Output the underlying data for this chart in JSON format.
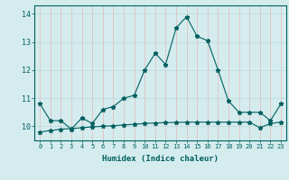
{
  "xlabel": "Humidex (Indice chaleur)",
  "x": [
    0,
    1,
    2,
    3,
    4,
    5,
    6,
    7,
    8,
    9,
    10,
    11,
    12,
    13,
    14,
    15,
    16,
    17,
    18,
    19,
    20,
    21,
    22,
    23
  ],
  "line1": [
    10.8,
    10.2,
    10.2,
    9.9,
    10.3,
    10.1,
    10.6,
    10.7,
    11.0,
    11.1,
    12.0,
    12.6,
    12.2,
    13.5,
    13.9,
    13.2,
    13.05,
    12.0,
    10.9,
    10.5,
    10.5,
    10.5,
    10.2,
    10.8
  ],
  "line2": [
    9.8,
    9.85,
    9.9,
    9.92,
    9.95,
    9.98,
    10.0,
    10.02,
    10.05,
    10.07,
    10.1,
    10.12,
    10.13,
    10.14,
    10.15,
    10.15,
    10.15,
    10.15,
    10.15,
    10.15,
    10.15,
    9.95,
    10.1,
    10.15
  ],
  "line_color": "#006060",
  "bg_color": "#d4ecee",
  "grid_color_major": "#b8d8da",
  "grid_color_minor": "#c8e4e6",
  "ylim": [
    9.5,
    14.3
  ],
  "yticks": [
    10,
    11,
    12,
    13,
    14
  ],
  "xlim": [
    -0.5,
    23.5
  ],
  "tick_fontsize": 5,
  "xlabel_fontsize": 6.5
}
